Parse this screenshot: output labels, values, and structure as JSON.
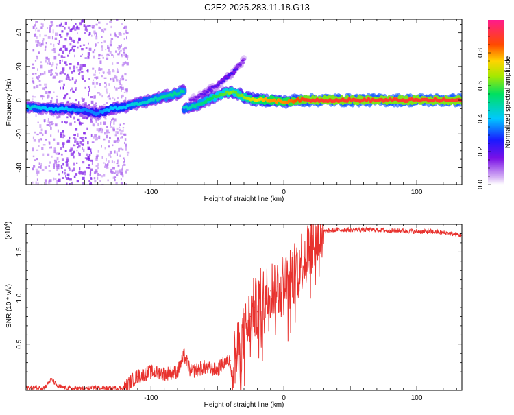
{
  "title": "C2E2.2025.283.11.18.G13",
  "chart_data": [
    {
      "type": "heatmap",
      "name": "spectrogram",
      "xlabel": "Height of straight line (km)",
      "ylabel": "Frequency (Hz)",
      "xlim": [
        -194,
        134
      ],
      "ylim": [
        -50,
        48
      ],
      "x_ticks": [
        -100,
        0,
        100
      ],
      "y_ticks": [
        40,
        20,
        0,
        -20,
        -40
      ],
      "colorbar": {
        "label": "Normalized spectral amplitude",
        "range": [
          0,
          1
        ],
        "ticks": [
          0.0,
          0.2,
          0.4,
          0.6,
          0.8
        ],
        "tick_labels": [
          "0.0",
          "0.2",
          "0.4",
          "0.6",
          "0.8"
        ]
      },
      "ridge": {
        "x": [
          -194,
          -180,
          -165,
          -150,
          -140,
          -130,
          -120,
          -110,
          -100,
          -90,
          -80,
          -75
        ],
        "y": [
          -4,
          -5,
          -5,
          -6,
          -8,
          -5,
          -4,
          -2,
          0,
          2,
          4,
          6
        ],
        "amplitude": [
          0.45,
          0.4,
          0.4,
          0.35,
          0.35,
          0.4,
          0.4,
          0.45,
          0.45,
          0.5,
          0.5,
          0.5
        ]
      },
      "branch": {
        "x": [
          -75,
          -65,
          -55,
          -45,
          -40,
          -35,
          -30,
          -25,
          -20,
          -10,
          0,
          10,
          20,
          40,
          60,
          80,
          100,
          120,
          134
        ],
        "y": [
          -5,
          -3,
          1,
          4,
          5,
          4,
          2,
          1,
          0,
          0,
          -1,
          0,
          0,
          0,
          0,
          0,
          0,
          0,
          0
        ],
        "amplitude": [
          0.45,
          0.5,
          0.55,
          0.6,
          0.65,
          0.6,
          0.65,
          0.7,
          0.75,
          0.8,
          0.8,
          0.85,
          0.9,
          0.9,
          0.9,
          0.9,
          0.9,
          0.9,
          0.9
        ]
      },
      "secondary_branch": {
        "x": [
          -70,
          -60,
          -50,
          -40,
          -35,
          -30
        ],
        "y": [
          0,
          4,
          9,
          15,
          19,
          24
        ],
        "amplitude": [
          0.15,
          0.2,
          0.2,
          0.25,
          0.2,
          0.15
        ]
      }
    },
    {
      "type": "line",
      "name": "snr",
      "xlabel": "Height of straight line (km)",
      "ylabel": "SNR (10 * v/v)",
      "y_scale_label": "(x10",
      "y_scale_exponent": "4",
      "xlim": [
        -194,
        134
      ],
      "ylim": [
        0,
        1.8
      ],
      "x_ticks": [
        -100,
        0,
        100
      ],
      "y_ticks": [
        0.5,
        1.0,
        1.5
      ],
      "y_tick_labels": [
        "0.5",
        "1.0",
        "1.5"
      ],
      "color": "#e8322e",
      "series": [
        {
          "name": "SNR",
          "x": [
            -194,
            -180,
            -175,
            -170,
            -160,
            -150,
            -140,
            -130,
            -120,
            -115,
            -110,
            -100,
            -90,
            -80,
            -75,
            -70,
            -60,
            -50,
            -45,
            -40,
            -35,
            -30,
            -25,
            -22,
            -20,
            -18,
            -15,
            -10,
            -5,
            0,
            5,
            10,
            15,
            20,
            25,
            30,
            40,
            50,
            60,
            70,
            80,
            90,
            100,
            110,
            120,
            130,
            134
          ],
          "y": [
            0.03,
            0.03,
            0.12,
            0.04,
            0.02,
            0.02,
            0.03,
            0.02,
            0.03,
            0.1,
            0.15,
            0.2,
            0.18,
            0.2,
            0.38,
            0.2,
            0.25,
            0.22,
            0.3,
            0.32,
            0.38,
            0.6,
            0.8,
            0.9,
            0.85,
            0.98,
            1.0,
            1.08,
            1.12,
            1.15,
            1.2,
            1.35,
            1.45,
            1.55,
            1.65,
            1.72,
            1.74,
            1.74,
            1.74,
            1.74,
            1.73,
            1.73,
            1.72,
            1.72,
            1.71,
            1.69,
            1.68
          ]
        }
      ]
    }
  ]
}
